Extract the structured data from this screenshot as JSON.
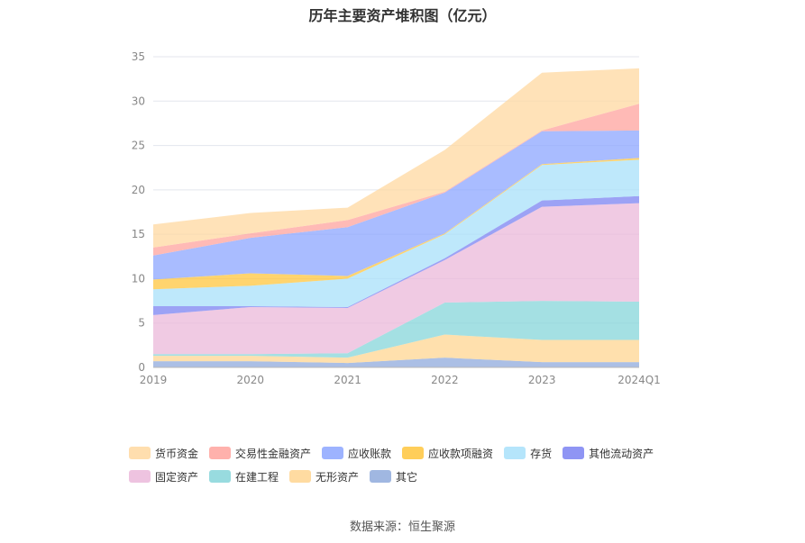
{
  "chart_data": {
    "type": "area",
    "stacked": true,
    "title": "历年主要资产堆积图（亿元）",
    "categories": [
      "2019",
      "2020",
      "2021",
      "2022",
      "2023",
      "2024Q1"
    ],
    "ylim": [
      0,
      35
    ],
    "yticks": [
      0,
      5,
      10,
      15,
      20,
      25,
      30,
      35
    ],
    "grid": true,
    "legend_position": "bottom",
    "series": [
      {
        "name": "其它",
        "color": "#8FAADC",
        "values": [
          0.7,
          0.7,
          0.5,
          1.1,
          0.6,
          0.6
        ]
      },
      {
        "name": "无形资产",
        "color": "#FFD591",
        "values": [
          0.6,
          0.6,
          0.6,
          2.6,
          2.5,
          2.5
        ]
      },
      {
        "name": "在建工程",
        "color": "#86D5D9",
        "values": [
          0.2,
          0.2,
          0.5,
          3.6,
          4.4,
          4.3
        ]
      },
      {
        "name": "固定资产",
        "color": "#EBB8DA",
        "values": [
          4.4,
          5.3,
          5.1,
          4.8,
          10.6,
          11.1
        ]
      },
      {
        "name": "其他流动资产",
        "color": "#7B83F2",
        "values": [
          1.0,
          0.1,
          0.1,
          0.2,
          0.7,
          0.8
        ]
      },
      {
        "name": "存货",
        "color": "#A8E0FA",
        "values": [
          1.9,
          2.3,
          3.2,
          2.7,
          4.0,
          4.1
        ]
      },
      {
        "name": "应收款项融资",
        "color": "#FFC53D",
        "values": [
          1.1,
          1.4,
          0.3,
          0.1,
          0.1,
          0.2
        ]
      },
      {
        "name": "应收账款",
        "color": "#8CA6FF",
        "values": [
          2.7,
          4.0,
          5.5,
          4.6,
          3.7,
          3.1
        ]
      },
      {
        "name": "交易性金融资产",
        "color": "#FFA39E",
        "values": [
          0.9,
          0.5,
          0.8,
          0.1,
          0.1,
          3.0
        ]
      },
      {
        "name": "货币资金",
        "color": "#FFD8A0",
        "values": [
          2.6,
          2.3,
          1.4,
          4.7,
          6.5,
          4.0
        ]
      }
    ]
  },
  "legend_order": [
    "货币资金",
    "交易性金融资产",
    "应收账款",
    "应收款项融资",
    "存货",
    "其他流动资产",
    "固定资产",
    "在建工程",
    "无形资产",
    "其它"
  ],
  "source": "数据来源：恒生聚源"
}
